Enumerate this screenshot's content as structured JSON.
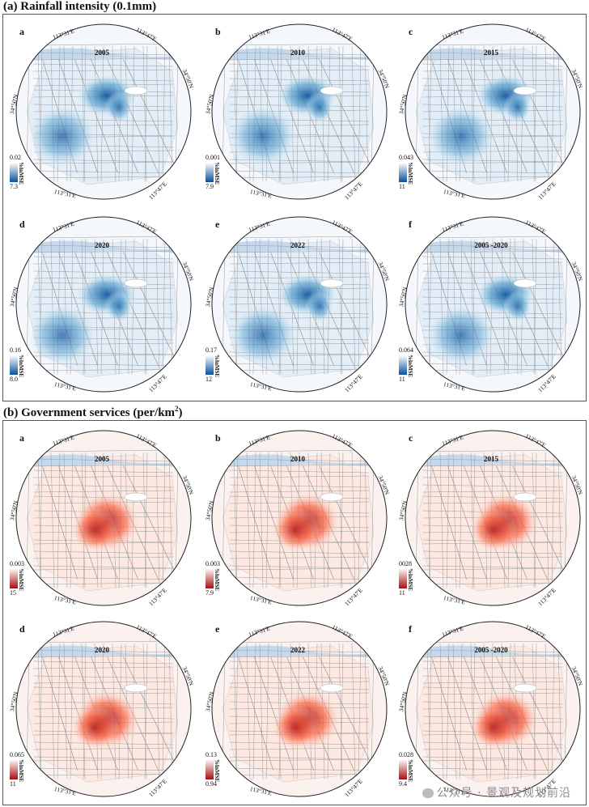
{
  "figure": {
    "section_a": {
      "title": "(a) Rainfall intensity (0.1mm)",
      "color_low": "#ffffff",
      "color_high": "#08519c",
      "panels": [
        {
          "label": "a",
          "year": "2005",
          "legend_max": "0.02",
          "legend_min": "7.3"
        },
        {
          "label": "b",
          "year": "2010",
          "legend_max": "0.001",
          "legend_min": "7.9"
        },
        {
          "label": "c",
          "year": "2015",
          "legend_max": "0.043",
          "legend_min": "11"
        },
        {
          "label": "d",
          "year": "2020",
          "legend_max": "0.16",
          "legend_min": "8.0"
        },
        {
          "label": "e",
          "year": "2022",
          "legend_max": "0.17",
          "legend_min": "12"
        },
        {
          "label": "f",
          "year": "2005 -2020",
          "legend_max": "0.064",
          "legend_min": "11"
        }
      ]
    },
    "section_b": {
      "title_main": "(b) Government services (per/km",
      "title_sup": "2",
      "title_end": ")",
      "color_low": "#fff5f0",
      "color_high": "#a50f15",
      "panels": [
        {
          "label": "a",
          "year": "2005",
          "legend_max": "0.003",
          "legend_min": "15"
        },
        {
          "label": "b",
          "year": "2010",
          "legend_max": "0.003",
          "legend_min": "7.9"
        },
        {
          "label": "c",
          "year": "2015",
          "legend_max": "0028",
          "legend_min": "11"
        },
        {
          "label": "d",
          "year": "2020",
          "legend_max": "0.065",
          "legend_min": "11"
        },
        {
          "label": "e",
          "year": "2022",
          "legend_max": "0.13",
          "legend_min": "0.94"
        },
        {
          "label": "f",
          "year": "2005 -2020",
          "legend_max": "0.028",
          "legend_min": "9.4"
        }
      ]
    },
    "legend_unit": "%lnMSE",
    "coords": {
      "lon_w": "113°31'E",
      "lon_e": "113°47'E",
      "lat": "34°50'N"
    },
    "watermark": "公众号 · 景观及规划前沿"
  }
}
